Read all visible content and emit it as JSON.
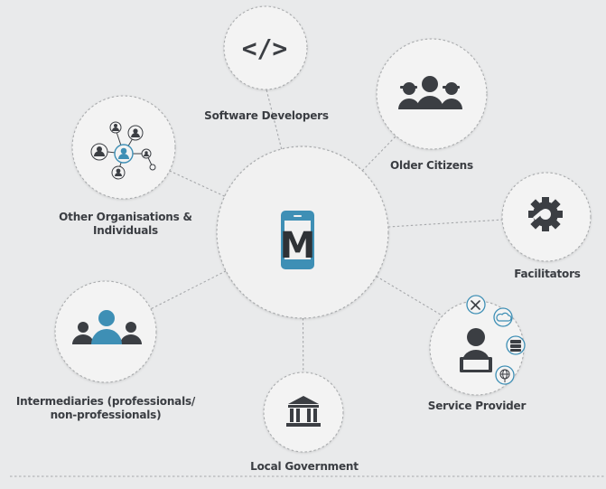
{
  "diagram": {
    "nodes": {
      "software_developers": {
        "label": "Software Developers"
      },
      "older_citizens": {
        "label": "Older Citizens"
      },
      "other_organisations": {
        "label_line1": "Other Organisations &",
        "label_line2": "Individuals"
      },
      "facilitators": {
        "label": "Facilitators"
      },
      "intermediaries": {
        "label_line1": "Intermediaries (professionals/",
        "label_line2": "non-professionals)"
      },
      "service_provider": {
        "label": "Service Provider"
      },
      "local_government": {
        "label": "Local Government"
      }
    },
    "center": {
      "logo_letter": "M"
    },
    "icons": {
      "code_symbol": "</>"
    },
    "colors": {
      "background": "#e9eaeb",
      "circle_fill": "#f3f3f3",
      "dashed_stroke": "#a9abad",
      "icon_dark": "#3b3e43",
      "accent_blue": "#3e8fb5"
    }
  }
}
